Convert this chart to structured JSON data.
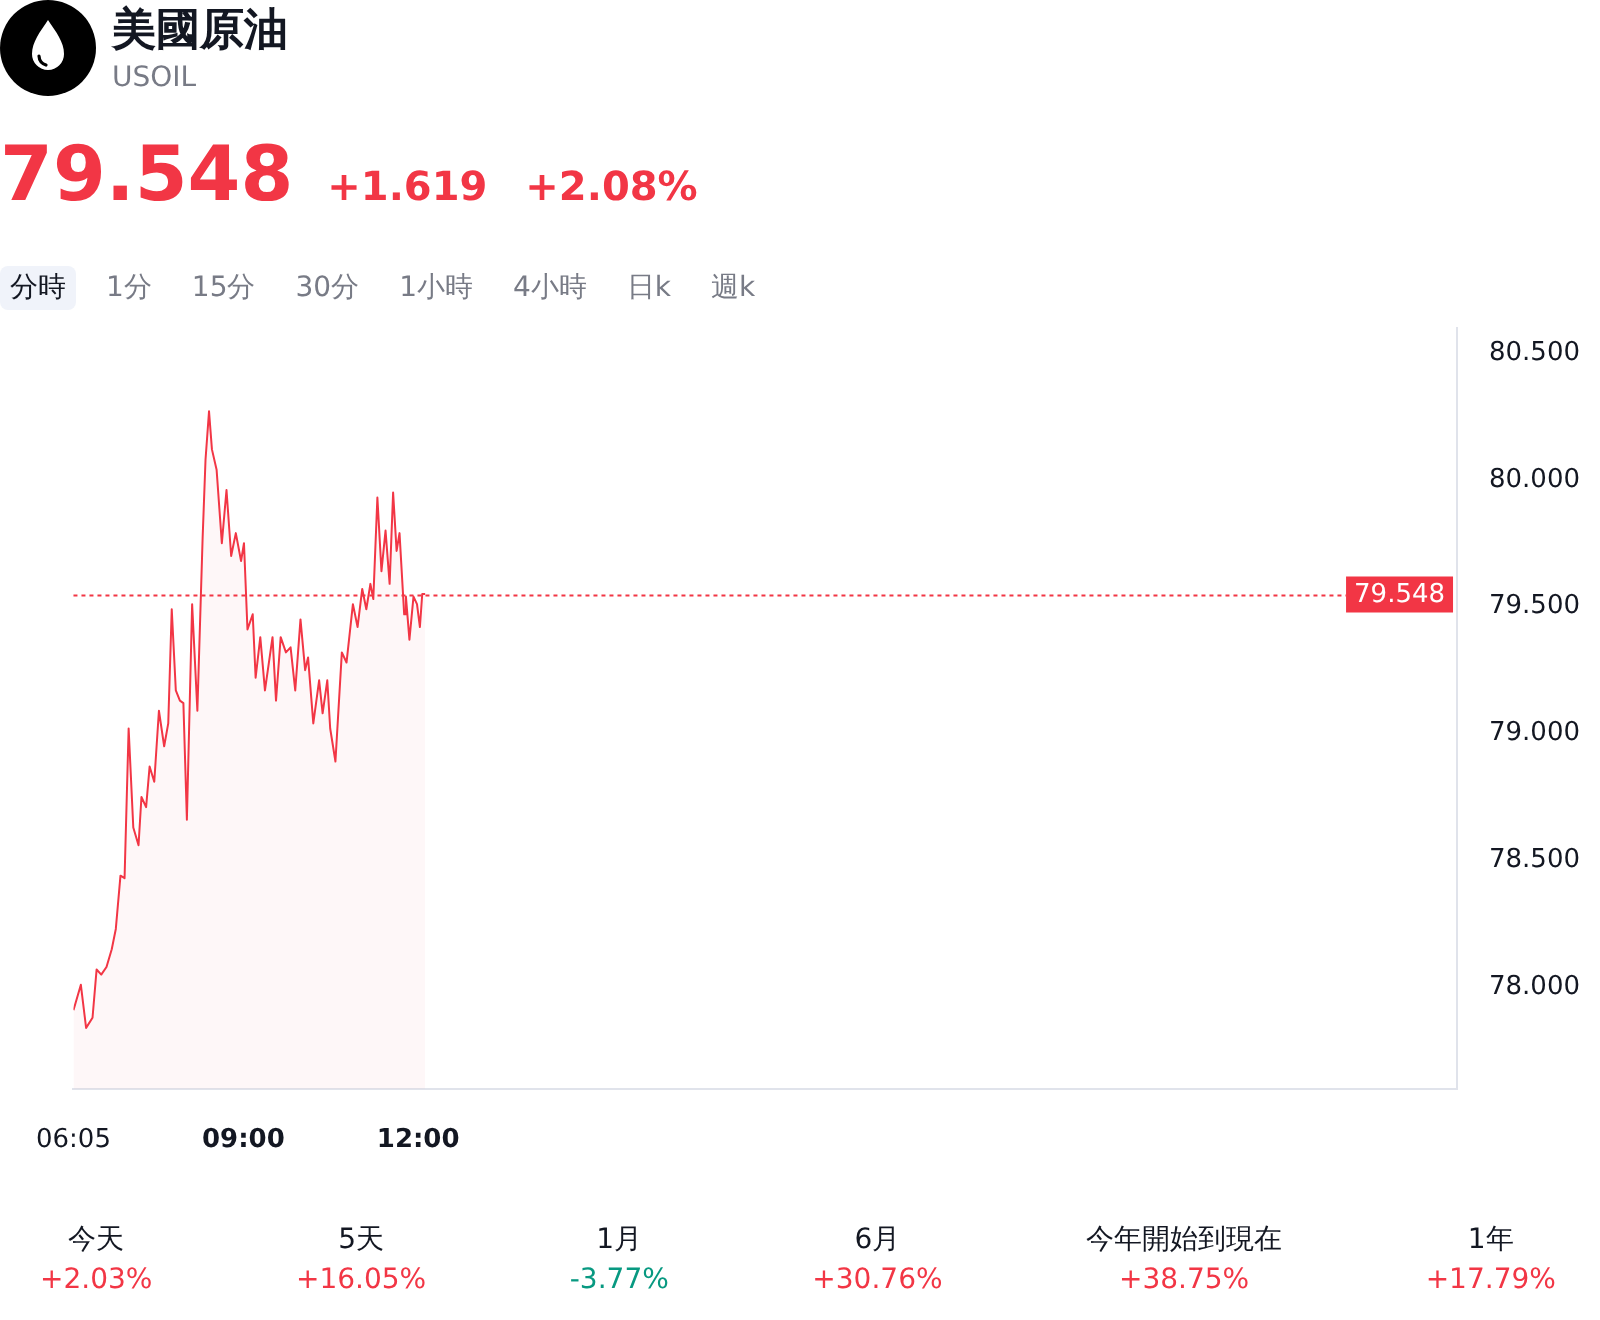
{
  "chart_data": {
    "type": "area",
    "title": "美國原油",
    "subtitle": "USOIL",
    "color": "#f23645",
    "x": [
      6.083,
      6.21,
      6.3,
      6.41,
      6.48,
      6.56,
      6.65,
      6.74,
      6.81,
      6.89,
      6.96,
      7.03,
      7.11,
      7.2,
      7.25,
      7.33,
      7.39,
      7.47,
      7.55,
      7.64,
      7.71,
      7.77,
      7.84,
      7.91,
      7.97,
      8.03,
      8.12,
      8.21,
      8.3,
      8.35,
      8.41,
      8.46,
      8.54,
      8.63,
      8.71,
      8.79,
      8.87,
      8.96,
      9.01,
      9.07,
      9.16,
      9.21,
      9.29,
      9.37,
      9.5,
      9.56,
      9.64,
      9.73,
      9.81,
      9.89,
      9.98,
      10.06,
      10.11,
      10.2,
      10.3,
      10.36,
      10.44,
      10.49,
      10.58,
      10.69,
      10.77,
      10.88,
      10.96,
      11.04,
      11.11,
      11.18,
      11.23,
      11.3,
      11.37,
      11.44,
      11.51,
      11.57,
      11.63,
      11.68,
      11.76,
      11.79,
      11.85,
      11.92,
      11.98,
      12.03,
      12.07,
      12.12
    ],
    "values": [
      77.91,
      78.01,
      77.84,
      77.88,
      78.07,
      78.05,
      78.08,
      78.15,
      78.23,
      78.44,
      78.43,
      79.02,
      78.63,
      78.56,
      78.75,
      78.71,
      78.87,
      78.81,
      79.09,
      78.95,
      79.04,
      79.49,
      79.17,
      79.13,
      79.12,
      78.66,
      79.51,
      79.09,
      79.77,
      80.08,
      80.27,
      80.12,
      80.04,
      79.75,
      79.96,
      79.7,
      79.79,
      79.68,
      79.75,
      79.41,
      79.47,
      79.22,
      79.38,
      79.17,
      79.38,
      79.13,
      79.38,
      79.32,
      79.34,
      79.17,
      79.45,
      79.25,
      79.3,
      79.04,
      79.21,
      79.08,
      79.21,
      79.02,
      78.89,
      79.32,
      79.28,
      79.51,
      79.42,
      79.57,
      79.49,
      79.59,
      79.53,
      79.93,
      79.64,
      79.8,
      79.59,
      79.95,
      79.72,
      79.79,
      79.47,
      79.54,
      79.37,
      79.54,
      79.51,
      79.42,
      79.55,
      79.55
    ],
    "xlim": [
      6.083,
      29.833
    ],
    "xticks": [
      {
        "value": 6.083,
        "label": "06:05"
      },
      {
        "value": 9,
        "label": "09:00"
      },
      {
        "value": 12,
        "label": "12:00"
      }
    ],
    "ylim": [
      77.6,
      80.6
    ],
    "yticks": [
      {
        "value": 78,
        "label": "78.000"
      },
      {
        "value": 78.5,
        "label": "78.500"
      },
      {
        "value": 79,
        "label": "79.000"
      },
      {
        "value": 79.5,
        "label": "79.500"
      },
      {
        "value": 80,
        "label": "80.000"
      },
      {
        "value": 80.5,
        "label": "80.500"
      }
    ],
    "ref_lines": [
      {
        "axis": "y",
        "value": 79.548,
        "label": "79.548",
        "color": "#f23645",
        "line_style": "dotted"
      }
    ],
    "annotations": [
      "79.548",
      "+1.619",
      "+2.08%",
      "分時",
      "1分",
      "15分",
      "30分",
      "1小時",
      "4小時",
      "日k",
      "週k",
      "今天",
      "+2.03%",
      "5天",
      "+16.05%",
      "1月",
      "-3.77%",
      "6月",
      "+30.76%",
      "今年開始到現在",
      "+38.75%",
      "1年",
      "+17.79%"
    ]
  }
}
